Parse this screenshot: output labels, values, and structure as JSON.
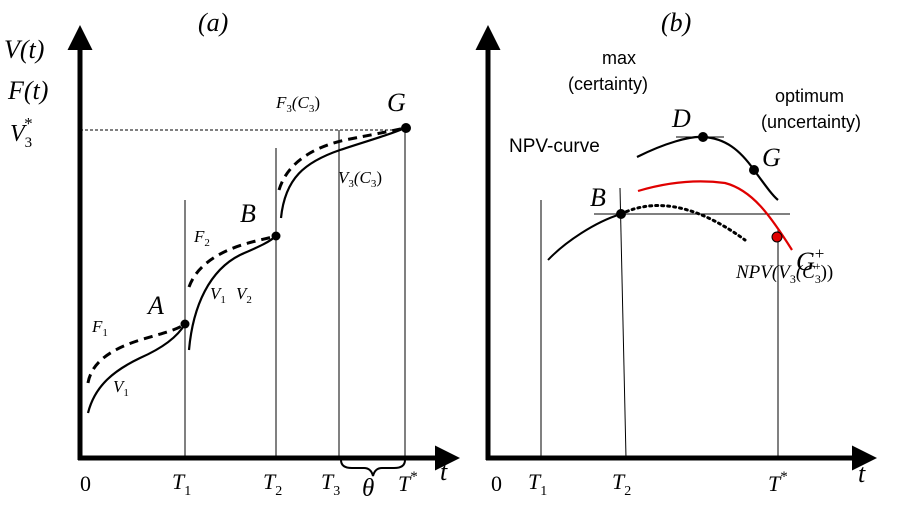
{
  "panel_a": {
    "title": "(a)",
    "y_label_top": "V(t)",
    "y_label_bottom": "F(t)",
    "y_tick": {
      "base": "V",
      "sub": "3",
      "sup": "*"
    },
    "x_label": "t",
    "x_ticks": {
      "zero": "0",
      "t1": {
        "base": "T",
        "sub": "1"
      },
      "t2": {
        "base": "T",
        "sub": "2"
      },
      "t3": {
        "base": "T",
        "sub": "3"
      },
      "tstar": {
        "base": "T",
        "sup": "*"
      }
    },
    "theta": "θ",
    "points": {
      "a": "A",
      "b": "B",
      "g": "G"
    },
    "curve_labels": {
      "f1": {
        "base": "F",
        "sub": "1"
      },
      "v1_low": {
        "base": "V",
        "sub": "1"
      },
      "f2": {
        "base": "F",
        "sub": "2"
      },
      "v1_mid": {
        "base": "V",
        "sub": "1"
      },
      "v2": {
        "base": "V",
        "sub": "2"
      },
      "f3": {
        "base": "F",
        "sub": "3",
        "arg": "(C",
        "arg_sub": "3",
        "close": ")"
      },
      "v3": {
        "base": "V",
        "sub": "3",
        "arg": "(C",
        "arg_sub": "3",
        "close": ")"
      }
    }
  },
  "panel_b": {
    "title": "(b)",
    "x_label": "t",
    "x_ticks": {
      "zero": "0",
      "t1": {
        "base": "T",
        "sub": "1"
      },
      "t2": {
        "base": "T",
        "sub": "2"
      },
      "tstar": {
        "base": "T",
        "sup": "*"
      }
    },
    "max_label": [
      "max",
      "(certainty)"
    ],
    "optimum_label": [
      "optimum",
      "(uncertainty)"
    ],
    "npv_curve_label": "NPV-curve",
    "points": {
      "b": "B",
      "d": "D",
      "g": "G",
      "gplus": {
        "base": "G",
        "sup": "+"
      }
    },
    "npv_label": {
      "pre": "NPV(V",
      "sub": "3",
      "mid": "(C",
      "sub2": "3",
      "sup2": "+",
      "close": "))"
    }
  },
  "colors": {
    "ink": "#000000",
    "highlight": "#e00000"
  }
}
